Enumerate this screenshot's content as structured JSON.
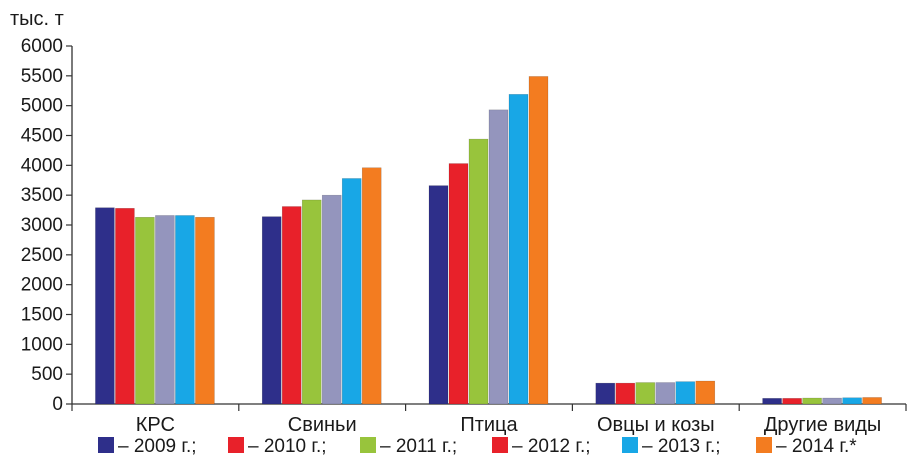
{
  "chart_data": {
    "type": "bar",
    "unit_label": "тыс. т",
    "categories": [
      "КРС",
      "Свиньи",
      "Птица",
      "Овцы и козы",
      "Другие виды"
    ],
    "series": [
      {
        "name": "– 2009 г.;",
        "color": "#2e2f8a",
        "values": [
          3290,
          3140,
          3660,
          350,
          95
        ]
      },
      {
        "name": "– 2010 г.;",
        "color": "#e8212a",
        "values": [
          3280,
          3310,
          4030,
          350,
          95
        ]
      },
      {
        "name": "– 2011 г.;",
        "color": "#98c43c",
        "values": [
          3130,
          3420,
          4440,
          360,
          100
        ]
      },
      {
        "name": "– 2012 г.;",
        "color": "#9495bd",
        "values": [
          3160,
          3500,
          4930,
          360,
          100
        ]
      },
      {
        "name": "– 2013 г.;",
        "color": "#18a7e6",
        "values": [
          3160,
          3780,
          5190,
          375,
          105
        ]
      },
      {
        "name": "– 2014 г.*",
        "color": "#f37c20",
        "values": [
          3130,
          3960,
          5490,
          385,
          110
        ]
      }
    ],
    "legend_square_color": "#e8212a",
    "y_ticks": [
      "6000",
      "5500",
      "5000",
      "4500",
      "4000",
      "3500",
      "3000",
      "2500",
      "2000",
      "1500",
      "1000",
      "500",
      "0"
    ],
    "ylim": [
      0,
      6000
    ],
    "grid": false,
    "legend_position": "bottom"
  }
}
